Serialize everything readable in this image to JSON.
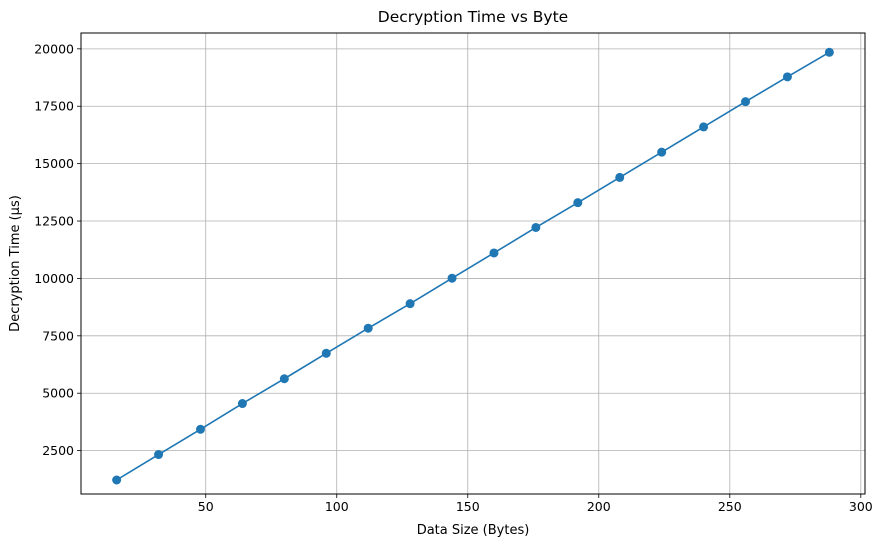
{
  "chart_data": {
    "type": "line",
    "title": "Decryption Time vs Byte",
    "xlabel": "Data Size (Bytes)",
    "ylabel": "Decryption Time (µs)",
    "xlim": [
      2.4,
      301.6
    ],
    "ylim": [
      610,
      20690
    ],
    "x_ticks": [
      50,
      100,
      150,
      200,
      250,
      300
    ],
    "y_ticks": [
      2500,
      5000,
      7500,
      10000,
      12500,
      15000,
      17500,
      20000
    ],
    "grid": true,
    "legend": "none",
    "series": [
      {
        "color": "#1f77b4",
        "marker": "circle",
        "x": [
          16,
          32,
          48,
          64,
          80,
          96,
          112,
          128,
          144,
          160,
          176,
          192,
          208,
          224,
          240,
          256,
          272,
          288
        ],
        "y": [
          1220,
          2330,
          3430,
          4550,
          5630,
          6740,
          7830,
          8900,
          10010,
          11110,
          12220,
          13300,
          14400,
          15500,
          16600,
          17700,
          18780,
          19850
        ]
      }
    ]
  }
}
